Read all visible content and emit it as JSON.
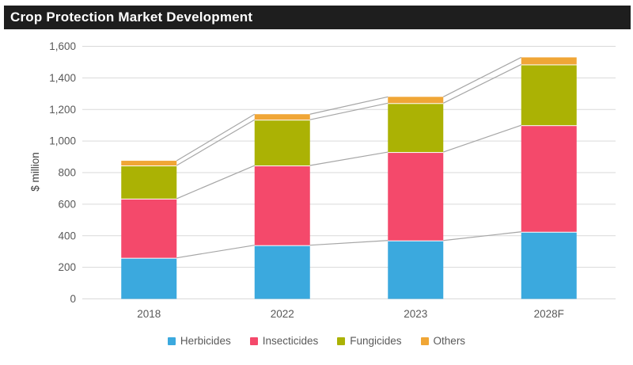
{
  "chart_data": {
    "type": "bar",
    "stacked": true,
    "title": "Crop Protection Market Development",
    "categories": [
      "2018",
      "2022",
      "2023",
      "2028F"
    ],
    "series": [
      {
        "name": "Herbicides",
        "color": "#3BA9DE",
        "values": [
          260,
          340,
          370,
          425
        ]
      },
      {
        "name": "Insecticides",
        "color": "#F4496B",
        "values": [
          375,
          505,
          560,
          675
        ]
      },
      {
        "name": "Fungicides",
        "color": "#ABB204",
        "values": [
          210,
          290,
          310,
          385
        ]
      },
      {
        "name": "Others",
        "color": "#F0A636",
        "values": [
          30,
          35,
          40,
          45
        ]
      }
    ],
    "ylabel": "$ million",
    "ylim": [
      0,
      1600
    ],
    "ytick_step": 200,
    "ytick_labels": [
      "0",
      "200",
      "400",
      "600",
      "800",
      "1,000",
      "1,200",
      "1,400",
      "1,600"
    ],
    "grid": true,
    "legend_position": "bottom",
    "connector_lines": {
      "show": true,
      "color": "#A6A6A6"
    }
  },
  "colors": {
    "title_bar_bg": "#1E1E1E",
    "title_text": "#FFFFFF",
    "gridline": "#D9D9D9",
    "axis_text": "#595959",
    "axis_title_text": "#404040",
    "background": "#FFFFFF"
  }
}
